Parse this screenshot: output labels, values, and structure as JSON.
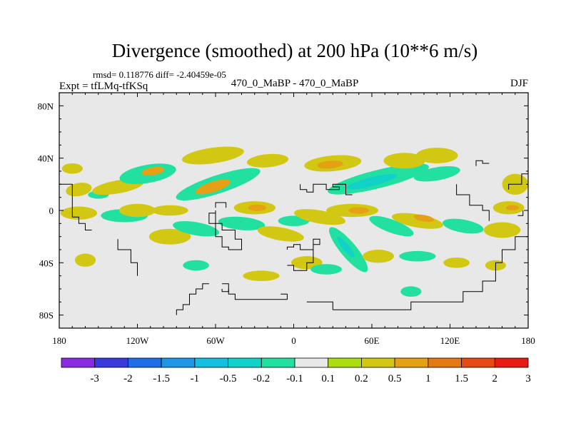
{
  "chart_data": {
    "type": "heatmap",
    "title": "Divergence (smoothed) at 200 hPa (10**6 m/s)",
    "stats": "rmsd= 0.118776 diff= -2.40459e-05",
    "left_label": "Expt = tfLMq-tfKSq",
    "center_label": "470_0_MaBP - 470_0_MaBP",
    "right_label": "DJF",
    "x_range": [
      -180,
      180
    ],
    "y_range": [
      -90,
      90
    ],
    "x_ticks": [
      {
        "value": -180,
        "label": "180"
      },
      {
        "value": -120,
        "label": "120W"
      },
      {
        "value": -60,
        "label": "60W"
      },
      {
        "value": 0,
        "label": "0"
      },
      {
        "value": 60,
        "label": "60E"
      },
      {
        "value": 120,
        "label": "120E"
      },
      {
        "value": 180,
        "label": "180"
      }
    ],
    "y_ticks": [
      {
        "value": 80,
        "label": "80N"
      },
      {
        "value": 40,
        "label": "40N"
      },
      {
        "value": 0,
        "label": "0"
      },
      {
        "value": -40,
        "label": "40S"
      },
      {
        "value": -80,
        "label": "80S"
      }
    ],
    "colorbar": {
      "levels": [
        "-3",
        "-2",
        "-1.5",
        "-1",
        "-0.5",
        "-0.2",
        "-0.1",
        "0.1",
        "0.2",
        "0.5",
        "1",
        "1.5",
        "2",
        "3"
      ],
      "colors": [
        "#8a2be2",
        "#3a3adc",
        "#1e6ee6",
        "#1e96e6",
        "#16bee0",
        "#10d2c8",
        "#22e0a0",
        "#e8e8e8",
        "#aade10",
        "#d2c814",
        "#e6a014",
        "#e67814",
        "#e64a14",
        "#e61c14"
      ]
    },
    "background_color": "#e8e8e8",
    "blobs": [
      {
        "lon": -170,
        "lat": 32,
        "rlon": 8,
        "rlat": 4,
        "rot": 0,
        "value": 0.2
      },
      {
        "lon": -165,
        "lat": 16,
        "rlon": 10,
        "rlat": 5,
        "rot": 10,
        "value": 0.2
      },
      {
        "lon": -150,
        "lat": 12,
        "rlon": 8,
        "rlat": 3,
        "rot": 0,
        "value": -0.2
      },
      {
        "lon": -135,
        "lat": 18,
        "rlon": 20,
        "rlat": 5,
        "rot": 10,
        "value": 0.2
      },
      {
        "lon": -112,
        "lat": 28,
        "rlon": 22,
        "rlat": 7,
        "rot": 10,
        "value": -0.2
      },
      {
        "lon": -108,
        "lat": 30,
        "rlon": 9,
        "rlat": 3,
        "rot": 10,
        "value": 0.5
      },
      {
        "lon": -58,
        "lat": 20,
        "rlon": 34,
        "rlat": 7,
        "rot": 18,
        "value": -0.2
      },
      {
        "lon": -62,
        "lat": 18,
        "rlon": 14,
        "rlat": 4,
        "rot": 18,
        "value": 0.5
      },
      {
        "lon": -62,
        "lat": 42,
        "rlon": 24,
        "rlat": 6,
        "rot": 8,
        "value": 0.2
      },
      {
        "lon": -20,
        "lat": 38,
        "rlon": 16,
        "rlat": 5,
        "rot": 5,
        "value": 0.2
      },
      {
        "lon": 30,
        "lat": 36,
        "rlon": 22,
        "rlat": 6,
        "rot": 5,
        "value": 0.2
      },
      {
        "lon": 28,
        "lat": 35,
        "rlon": 10,
        "rlat": 3,
        "rot": 5,
        "value": 0.5
      },
      {
        "lon": 65,
        "lat": 24,
        "rlon": 40,
        "rlat": 7,
        "rot": 14,
        "value": -0.2
      },
      {
        "lon": 60,
        "lat": 22,
        "rlon": 20,
        "rlat": 3.5,
        "rot": 14,
        "value": -0.5
      },
      {
        "lon": 85,
        "lat": 38,
        "rlon": 16,
        "rlat": 6,
        "rot": 0,
        "value": 0.2
      },
      {
        "lon": 110,
        "lat": 28,
        "rlon": 18,
        "rlat": 5,
        "rot": 10,
        "value": -0.2
      },
      {
        "lon": 110,
        "lat": 42,
        "rlon": 16,
        "rlat": 6,
        "rot": 0,
        "value": 0.2
      },
      {
        "lon": 170,
        "lat": 20,
        "rlon": 10,
        "rlat": 8,
        "rot": 0,
        "value": 0.2
      },
      {
        "lon": -165,
        "lat": -2,
        "rlon": 14,
        "rlat": 5,
        "rot": 0,
        "value": 0.2
      },
      {
        "lon": -130,
        "lat": -4,
        "rlon": 18,
        "rlat": 5,
        "rot": 0,
        "value": -0.2
      },
      {
        "lon": -120,
        "lat": 0,
        "rlon": 14,
        "rlat": 5,
        "rot": 0,
        "value": 0.2
      },
      {
        "lon": -95,
        "lat": 0,
        "rlon": 14,
        "rlat": 4,
        "rot": 0,
        "value": 0.2
      },
      {
        "lon": -95,
        "lat": -20,
        "rlon": 16,
        "rlat": 6,
        "rot": 0,
        "value": 0.2
      },
      {
        "lon": -75,
        "lat": -14,
        "rlon": 18,
        "rlat": 5,
        "rot": -10,
        "value": -0.2
      },
      {
        "lon": -40,
        "lat": -10,
        "rlon": 18,
        "rlat": 5,
        "rot": -5,
        "value": -0.2
      },
      {
        "lon": -30,
        "lat": 2,
        "rlon": 16,
        "rlat": 5,
        "rot": 0,
        "value": 0.2
      },
      {
        "lon": -28,
        "lat": 2,
        "rlon": 7,
        "rlat": 2.5,
        "rot": 0,
        "value": 0.5
      },
      {
        "lon": -10,
        "lat": -18,
        "rlon": 18,
        "rlat": 5,
        "rot": -10,
        "value": 0.2
      },
      {
        "lon": 0,
        "lat": -8,
        "rlon": 12,
        "rlat": 4,
        "rot": 0,
        "value": -0.2
      },
      {
        "lon": 20,
        "lat": -5,
        "rlon": 20,
        "rlat": 5,
        "rot": -10,
        "value": 0.2
      },
      {
        "lon": 45,
        "lat": 0,
        "rlon": 20,
        "rlat": 5,
        "rot": 0,
        "value": 0.2
      },
      {
        "lon": 50,
        "lat": 0,
        "rlon": 8,
        "rlat": 2.5,
        "rot": 0,
        "value": 0.5
      },
      {
        "lon": 42,
        "lat": -30,
        "rlon": 22,
        "rlat": 6,
        "rot": -50,
        "value": -0.2
      },
      {
        "lon": 40,
        "lat": -28,
        "rlon": 10,
        "rlat": 2.5,
        "rot": -50,
        "value": -0.5
      },
      {
        "lon": 75,
        "lat": -12,
        "rlon": 18,
        "rlat": 5,
        "rot": -20,
        "value": -0.2
      },
      {
        "lon": 95,
        "lat": -8,
        "rlon": 20,
        "rlat": 5,
        "rot": -10,
        "value": 0.2
      },
      {
        "lon": 100,
        "lat": -6,
        "rlon": 8,
        "rlat": 2.5,
        "rot": -10,
        "value": 0.5
      },
      {
        "lon": 130,
        "lat": -12,
        "rlon": 16,
        "rlat": 5,
        "rot": -10,
        "value": -0.2
      },
      {
        "lon": 160,
        "lat": -15,
        "rlon": 14,
        "rlat": 6,
        "rot": 0,
        "value": 0.2
      },
      {
        "lon": 165,
        "lat": 2,
        "rlon": 12,
        "rlat": 5,
        "rot": 0,
        "value": 0.2
      },
      {
        "lon": 168,
        "lat": 2,
        "rlon": 5,
        "rlat": 2,
        "rot": 0,
        "value": 0.5
      },
      {
        "lon": -160,
        "lat": -38,
        "rlon": 8,
        "rlat": 5,
        "rot": 0,
        "value": 0.2
      },
      {
        "lon": -75,
        "lat": -42,
        "rlon": 10,
        "rlat": 4,
        "rot": 0,
        "value": -0.2
      },
      {
        "lon": -25,
        "lat": -50,
        "rlon": 14,
        "rlat": 4,
        "rot": 0,
        "value": 0.2
      },
      {
        "lon": 10,
        "lat": -40,
        "rlon": 12,
        "rlat": 5,
        "rot": 0,
        "value": 0.2
      },
      {
        "lon": 25,
        "lat": -45,
        "rlon": 12,
        "rlat": 4,
        "rot": 0,
        "value": -0.2
      },
      {
        "lon": 65,
        "lat": -35,
        "rlon": 12,
        "rlat": 5,
        "rot": 0,
        "value": 0.2
      },
      {
        "lon": 95,
        "lat": -35,
        "rlon": 14,
        "rlat": 4,
        "rot": 0,
        "value": -0.2
      },
      {
        "lon": 125,
        "lat": -40,
        "rlon": 10,
        "rlat": 4,
        "rot": 0,
        "value": 0.2
      },
      {
        "lon": 90,
        "lat": -62,
        "rlon": 8,
        "rlat": 4,
        "rot": 0,
        "value": -0.2
      },
      {
        "lon": 155,
        "lat": -42,
        "rlon": 8,
        "rlat": 4,
        "rot": 0,
        "value": 0.2
      }
    ],
    "coastlines": [
      [
        [
          -90,
          -80
        ],
        [
          -90,
          -76
        ],
        [
          -85,
          -76
        ],
        [
          -85,
          -72
        ],
        [
          -80,
          -72
        ],
        [
          -80,
          -64
        ],
        [
          -75,
          -64
        ],
        [
          -75,
          -60
        ],
        [
          -70,
          -60
        ],
        [
          -70,
          -56
        ],
        [
          -65,
          -56
        ]
      ],
      [
        [
          -55,
          -56
        ],
        [
          -50,
          -56
        ],
        [
          -50,
          -64
        ],
        [
          -45,
          -64
        ],
        [
          -45,
          -68
        ],
        [
          -5,
          -68
        ],
        [
          -5,
          -64
        ],
        [
          -10,
          -64
        ]
      ],
      [
        [
          10,
          -70
        ],
        [
          30,
          -70
        ],
        [
          30,
          -76
        ]
      ],
      [
        [
          30,
          -76
        ],
        [
          90,
          -76
        ],
        [
          90,
          -70
        ],
        [
          130,
          -70
        ],
        [
          130,
          -62
        ],
        [
          145,
          -62
        ],
        [
          145,
          -54
        ],
        [
          155,
          -54
        ],
        [
          155,
          -40
        ],
        [
          160,
          -40
        ],
        [
          160,
          -30
        ],
        [
          170,
          -30
        ],
        [
          170,
          -20
        ],
        [
          180,
          -20
        ]
      ],
      [
        [
          -60,
          0
        ],
        [
          -60,
          -10
        ],
        [
          -55,
          -10
        ],
        [
          -55,
          -15
        ],
        [
          -45,
          -15
        ],
        [
          -45,
          -22
        ],
        [
          -40,
          -22
        ],
        [
          -40,
          -30
        ],
        [
          -50,
          -30
        ],
        [
          -50,
          -28
        ],
        [
          -55,
          -28
        ],
        [
          -55,
          -20
        ],
        [
          -60,
          -20
        ],
        [
          -60,
          -10
        ],
        [
          -65,
          -10
        ],
        [
          -65,
          -2
        ],
        [
          -60,
          -2
        ]
      ],
      [
        [
          -60,
          2
        ],
        [
          -60,
          6
        ],
        [
          -52,
          6
        ],
        [
          -52,
          2
        ]
      ],
      [
        [
          -5,
          -30
        ],
        [
          -5,
          -28
        ],
        [
          0,
          -28
        ],
        [
          0,
          -26
        ],
        [
          5,
          -26
        ],
        [
          5,
          -30
        ],
        [
          15,
          -30
        ],
        [
          15,
          -26
        ],
        [
          20,
          -26
        ],
        [
          20,
          -22
        ],
        [
          15,
          -22
        ],
        [
          15,
          -40
        ],
        [
          10,
          -40
        ],
        [
          10,
          -46
        ],
        [
          0,
          -46
        ],
        [
          0,
          -42
        ],
        [
          -5,
          -42
        ]
      ],
      [
        [
          5,
          20
        ],
        [
          5,
          16
        ],
        [
          10,
          16
        ],
        [
          10,
          14
        ],
        [
          15,
          14
        ],
        [
          15,
          20
        ],
        [
          25,
          20
        ],
        [
          25,
          16
        ],
        [
          35,
          16
        ],
        [
          35,
          18
        ],
        [
          30,
          18
        ],
        [
          30,
          20
        ],
        [
          40,
          20
        ],
        [
          40,
          12
        ],
        [
          45,
          12
        ]
      ],
      [
        [
          125,
          20
        ],
        [
          125,
          12
        ],
        [
          135,
          12
        ],
        [
          135,
          4
        ],
        [
          145,
          4
        ],
        [
          145,
          0
        ],
        [
          150,
          0
        ],
        [
          150,
          -8
        ]
      ],
      [
        [
          165,
          16
        ],
        [
          165,
          20
        ],
        [
          175,
          20
        ],
        [
          175,
          28
        ],
        [
          180,
          28
        ]
      ],
      [
        [
          140,
          34
        ],
        [
          140,
          38
        ],
        [
          145,
          38
        ],
        [
          145,
          36
        ],
        [
          150,
          36
        ]
      ],
      [
        [
          -180,
          20
        ],
        [
          -170,
          20
        ],
        [
          -170,
          -5
        ],
        [
          -165,
          -5
        ],
        [
          -165,
          -10
        ],
        [
          -160,
          -10
        ],
        [
          -160,
          -15
        ],
        [
          -155,
          -15
        ]
      ],
      [
        [
          -135,
          -22
        ],
        [
          -135,
          -30
        ],
        [
          -125,
          -30
        ],
        [
          -125,
          -40
        ],
        [
          -120,
          -40
        ],
        [
          -120,
          -50
        ]
      ],
      [
        [
          172,
          -4
        ],
        [
          176,
          -4
        ],
        [
          176,
          0
        ]
      ],
      [
        [
          -55,
          -60
        ],
        [
          -55,
          -62
        ],
        [
          -50,
          -62
        ],
        [
          -50,
          -60
        ]
      ]
    ]
  }
}
